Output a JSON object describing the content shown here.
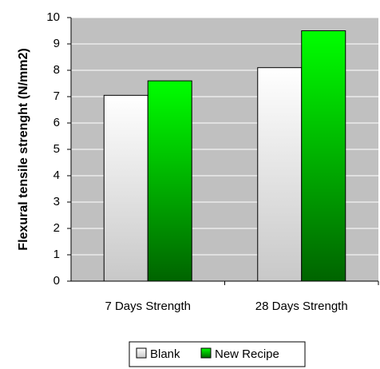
{
  "chart_data": {
    "type": "bar",
    "categories": [
      "7 Days Strength",
      "28 Days Strength"
    ],
    "series": [
      {
        "name": "Blank",
        "values": [
          7.05,
          8.1
        ]
      },
      {
        "name": "New Recipe",
        "values": [
          7.6,
          9.5
        ]
      }
    ],
    "title": "",
    "xlabel": "",
    "ylabel": "Flexural tensile strenght (N/mm2)",
    "ylim": [
      0,
      10
    ],
    "yticks": [
      0,
      1,
      2,
      3,
      4,
      5,
      6,
      7,
      8,
      9,
      10
    ],
    "grid": true,
    "legend_position": "bottom",
    "colors": {
      "plot_background": "#c0c0c0",
      "gridline": "#ffffff",
      "blank_top": "#ffffff",
      "blank_bottom": "#c8c8c8",
      "new_recipe_top": "#00ff00",
      "new_recipe_bottom": "#006400",
      "bar_outline": "#000000"
    }
  }
}
